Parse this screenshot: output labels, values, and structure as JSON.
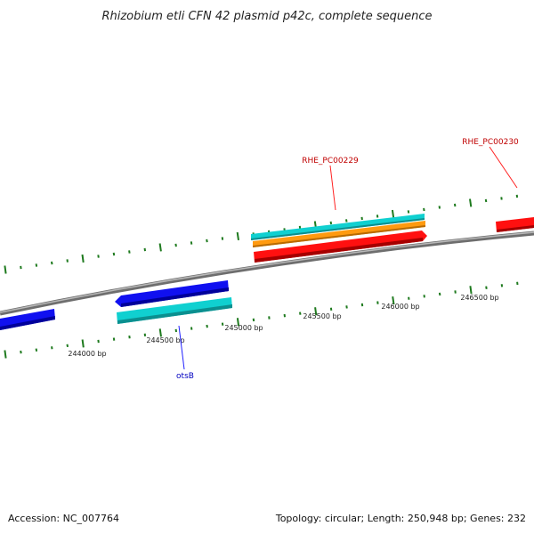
{
  "title": "Rhizobium etli CFN 42 plasmid p42c, complete sequence",
  "footer": {
    "accession": "Accession: NC_007764",
    "summary": "Topology: circular; Length: 250,948 bp; Genes: 232"
  },
  "colors": {
    "backbone": "#8a8a8a",
    "tick": "#1e7a1e",
    "red_feature": "#ff1010",
    "blue_feature": "#1010f0",
    "cyan_feature": "#10d0d0",
    "orange_feature": "#ff9a10",
    "red_label": "#c00000",
    "blue_label": "#0000c0"
  },
  "scale_labels": [
    {
      "bp": 244000,
      "text": "244000 bp"
    },
    {
      "bp": 244500,
      "text": "244500 bp"
    },
    {
      "bp": 245000,
      "text": "245000 bp"
    },
    {
      "bp": 245500,
      "text": "245500 bp"
    },
    {
      "bp": 246000,
      "text": "246000 bp"
    },
    {
      "bp": 246500,
      "text": "246500 bp"
    }
  ],
  "gene_labels": [
    {
      "id": "rhe229",
      "text": "RHE_PC00229",
      "color": "red"
    },
    {
      "id": "rhe230",
      "text": "RHE_PC00230",
      "color": "red"
    },
    {
      "id": "otsb",
      "text": "otsB",
      "color": "blue"
    }
  ]
}
